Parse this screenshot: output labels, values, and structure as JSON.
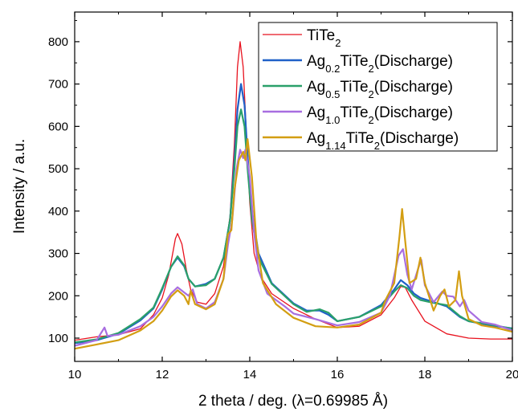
{
  "chart_data": {
    "type": "line",
    "title": "",
    "xlabel": "2 theta / deg. (λ=0.69985 Å)",
    "ylabel": "Intensity / a.u.",
    "xlim": [
      10,
      20
    ],
    "ylim": [
      45,
      870
    ],
    "xticks": [
      10,
      12,
      14,
      16,
      18,
      20
    ],
    "yticks": [
      100,
      200,
      300,
      400,
      500,
      600,
      700,
      800
    ],
    "grid": false,
    "legend_position": "top-right",
    "series": [
      {
        "name": "TiTe₂",
        "legend": {
          "base": "TiTe",
          "sub": "2",
          "rest": ""
        },
        "color": "#e8121e",
        "points": [
          [
            10,
            95
          ],
          [
            10.5,
            103
          ],
          [
            11,
            108
          ],
          [
            11.5,
            122
          ],
          [
            11.8,
            155
          ],
          [
            12.0,
            195
          ],
          [
            12.15,
            250
          ],
          [
            12.3,
            335
          ],
          [
            12.35,
            347
          ],
          [
            12.45,
            322
          ],
          [
            12.55,
            262
          ],
          [
            12.65,
            215
          ],
          [
            12.8,
            185
          ],
          [
            13.0,
            180
          ],
          [
            13.2,
            205
          ],
          [
            13.4,
            270
          ],
          [
            13.55,
            390
          ],
          [
            13.65,
            560
          ],
          [
            13.72,
            740
          ],
          [
            13.78,
            800
          ],
          [
            13.85,
            740
          ],
          [
            13.92,
            590
          ],
          [
            14.0,
            420
          ],
          [
            14.1,
            300
          ],
          [
            14.25,
            245
          ],
          [
            14.5,
            205
          ],
          [
            15.0,
            170
          ],
          [
            15.5,
            145
          ],
          [
            16.0,
            125
          ],
          [
            16.5,
            128
          ],
          [
            17.0,
            155
          ],
          [
            17.3,
            195
          ],
          [
            17.45,
            222
          ],
          [
            17.55,
            220
          ],
          [
            17.7,
            190
          ],
          [
            18.0,
            140
          ],
          [
            18.5,
            110
          ],
          [
            19.0,
            100
          ],
          [
            19.5,
            98
          ],
          [
            20,
            98
          ]
        ]
      },
      {
        "name": "Ag₀.₂TiTe₂(Discharge)",
        "legend": {
          "base": "Ag",
          "sub": "0.2",
          "rest": "TiTe",
          "sub2": "2",
          "tail": "(Discharge)"
        },
        "color": "#1f60c8",
        "points": [
          [
            10,
            88
          ],
          [
            10.5,
            95
          ],
          [
            11,
            110
          ],
          [
            11.5,
            142
          ],
          [
            11.8,
            170
          ],
          [
            12.0,
            215
          ],
          [
            12.2,
            268
          ],
          [
            12.35,
            290
          ],
          [
            12.5,
            270
          ],
          [
            12.6,
            240
          ],
          [
            12.75,
            222
          ],
          [
            13.0,
            228
          ],
          [
            13.2,
            240
          ],
          [
            13.4,
            290
          ],
          [
            13.55,
            380
          ],
          [
            13.65,
            520
          ],
          [
            13.72,
            640
          ],
          [
            13.8,
            700
          ],
          [
            13.88,
            650
          ],
          [
            13.95,
            530
          ],
          [
            14.05,
            400
          ],
          [
            14.2,
            300
          ],
          [
            14.5,
            230
          ],
          [
            15.0,
            182
          ],
          [
            15.3,
            165
          ],
          [
            15.6,
            165
          ],
          [
            15.8,
            155
          ],
          [
            16.0,
            140
          ],
          [
            16.5,
            150
          ],
          [
            17.0,
            178
          ],
          [
            17.3,
            215
          ],
          [
            17.45,
            237
          ],
          [
            17.6,
            225
          ],
          [
            17.75,
            205
          ],
          [
            17.9,
            195
          ],
          [
            18.2,
            185
          ],
          [
            18.5,
            175
          ],
          [
            18.8,
            150
          ],
          [
            19.0,
            140
          ],
          [
            19.5,
            130
          ],
          [
            20,
            123
          ]
        ]
      },
      {
        "name": "Ag₀.₅TiTe₂(Discharge)",
        "legend": {
          "base": "Ag",
          "sub": "0.5",
          "rest": "TiTe",
          "sub2": "2",
          "tail": "(Discharge)"
        },
        "color": "#2aa06a",
        "points": [
          [
            10,
            90
          ],
          [
            10.5,
            97
          ],
          [
            11,
            112
          ],
          [
            11.5,
            145
          ],
          [
            11.8,
            172
          ],
          [
            12.0,
            218
          ],
          [
            12.2,
            268
          ],
          [
            12.35,
            293
          ],
          [
            12.5,
            272
          ],
          [
            12.6,
            240
          ],
          [
            12.75,
            222
          ],
          [
            13.0,
            225
          ],
          [
            13.2,
            240
          ],
          [
            13.4,
            290
          ],
          [
            13.55,
            380
          ],
          [
            13.65,
            500
          ],
          [
            13.72,
            600
          ],
          [
            13.8,
            640
          ],
          [
            13.88,
            600
          ],
          [
            13.95,
            500
          ],
          [
            14.05,
            380
          ],
          [
            14.2,
            290
          ],
          [
            14.5,
            228
          ],
          [
            15.0,
            180
          ],
          [
            15.3,
            162
          ],
          [
            15.6,
            168
          ],
          [
            15.8,
            160
          ],
          [
            16.0,
            140
          ],
          [
            16.5,
            150
          ],
          [
            17.0,
            175
          ],
          [
            17.3,
            210
          ],
          [
            17.45,
            225
          ],
          [
            17.6,
            218
          ],
          [
            17.75,
            200
          ],
          [
            17.9,
            190
          ],
          [
            18.2,
            183
          ],
          [
            18.5,
            178
          ],
          [
            18.8,
            152
          ],
          [
            19.0,
            140
          ],
          [
            19.5,
            132
          ],
          [
            20,
            122
          ]
        ]
      },
      {
        "name": "Ag₁.₀TiTe₂(Discharge)",
        "legend": {
          "base": "Ag",
          "sub": "1.0",
          "rest": "TiTe",
          "sub2": "2",
          "tail": "(Discharge)"
        },
        "color": "#a86ee0",
        "points": [
          [
            10,
            82
          ],
          [
            10.5,
            95
          ],
          [
            10.68,
            125
          ],
          [
            10.75,
            105
          ],
          [
            11,
            108
          ],
          [
            11.5,
            128
          ],
          [
            11.8,
            150
          ],
          [
            12.0,
            175
          ],
          [
            12.2,
            205
          ],
          [
            12.35,
            220
          ],
          [
            12.5,
            208
          ],
          [
            12.6,
            200
          ],
          [
            12.7,
            215
          ],
          [
            12.8,
            180
          ],
          [
            13.0,
            170
          ],
          [
            13.2,
            185
          ],
          [
            13.4,
            240
          ],
          [
            13.5,
            320
          ],
          [
            13.6,
            380
          ],
          [
            13.7,
            500
          ],
          [
            13.78,
            545
          ],
          [
            13.85,
            525
          ],
          [
            13.9,
            545
          ],
          [
            14.0,
            480
          ],
          [
            14.1,
            350
          ],
          [
            14.2,
            260
          ],
          [
            14.4,
            205
          ],
          [
            14.8,
            175
          ],
          [
            15.0,
            158
          ],
          [
            15.5,
            145
          ],
          [
            16.0,
            130
          ],
          [
            16.5,
            138
          ],
          [
            17.0,
            160
          ],
          [
            17.2,
            200
          ],
          [
            17.4,
            295
          ],
          [
            17.5,
            310
          ],
          [
            17.6,
            250
          ],
          [
            17.7,
            215
          ],
          [
            17.85,
            265
          ],
          [
            17.92,
            285
          ],
          [
            18.0,
            225
          ],
          [
            18.2,
            185
          ],
          [
            18.4,
            210
          ],
          [
            18.5,
            200
          ],
          [
            18.65,
            198
          ],
          [
            18.8,
            175
          ],
          [
            18.9,
            190
          ],
          [
            19.0,
            165
          ],
          [
            19.3,
            138
          ],
          [
            19.6,
            132
          ],
          [
            20,
            118
          ]
        ]
      },
      {
        "name": "Ag₁.₁₄TiTe₂(Discharge)",
        "legend": {
          "base": "Ag",
          "sub": "1.14",
          "rest": "TiTe",
          "sub2": "2",
          "tail": "(Discharge)"
        },
        "color": "#d39e12",
        "points": [
          [
            10,
            75
          ],
          [
            10.5,
            85
          ],
          [
            11,
            95
          ],
          [
            11.5,
            118
          ],
          [
            11.8,
            140
          ],
          [
            12.0,
            165
          ],
          [
            12.2,
            198
          ],
          [
            12.35,
            213
          ],
          [
            12.5,
            200
          ],
          [
            12.6,
            180
          ],
          [
            12.65,
            212
          ],
          [
            12.75,
            180
          ],
          [
            13.0,
            168
          ],
          [
            13.2,
            180
          ],
          [
            13.4,
            240
          ],
          [
            13.5,
            345
          ],
          [
            13.58,
            355
          ],
          [
            13.65,
            450
          ],
          [
            13.75,
            520
          ],
          [
            13.85,
            540
          ],
          [
            13.9,
            520
          ],
          [
            13.95,
            570
          ],
          [
            14.05,
            480
          ],
          [
            14.15,
            330
          ],
          [
            14.3,
            230
          ],
          [
            14.6,
            180
          ],
          [
            15.0,
            148
          ],
          [
            15.5,
            128
          ],
          [
            16.0,
            125
          ],
          [
            16.5,
            132
          ],
          [
            17.0,
            160
          ],
          [
            17.1,
            190
          ],
          [
            17.3,
            230
          ],
          [
            17.42,
            340
          ],
          [
            17.48,
            405
          ],
          [
            17.55,
            330
          ],
          [
            17.65,
            230
          ],
          [
            17.8,
            240
          ],
          [
            17.9,
            290
          ],
          [
            18.0,
            230
          ],
          [
            18.2,
            165
          ],
          [
            18.35,
            200
          ],
          [
            18.45,
            215
          ],
          [
            18.55,
            175
          ],
          [
            18.7,
            190
          ],
          [
            18.78,
            258
          ],
          [
            18.85,
            200
          ],
          [
            19.0,
            145
          ],
          [
            19.3,
            130
          ],
          [
            19.6,
            125
          ],
          [
            20,
            115
          ]
        ]
      }
    ]
  }
}
